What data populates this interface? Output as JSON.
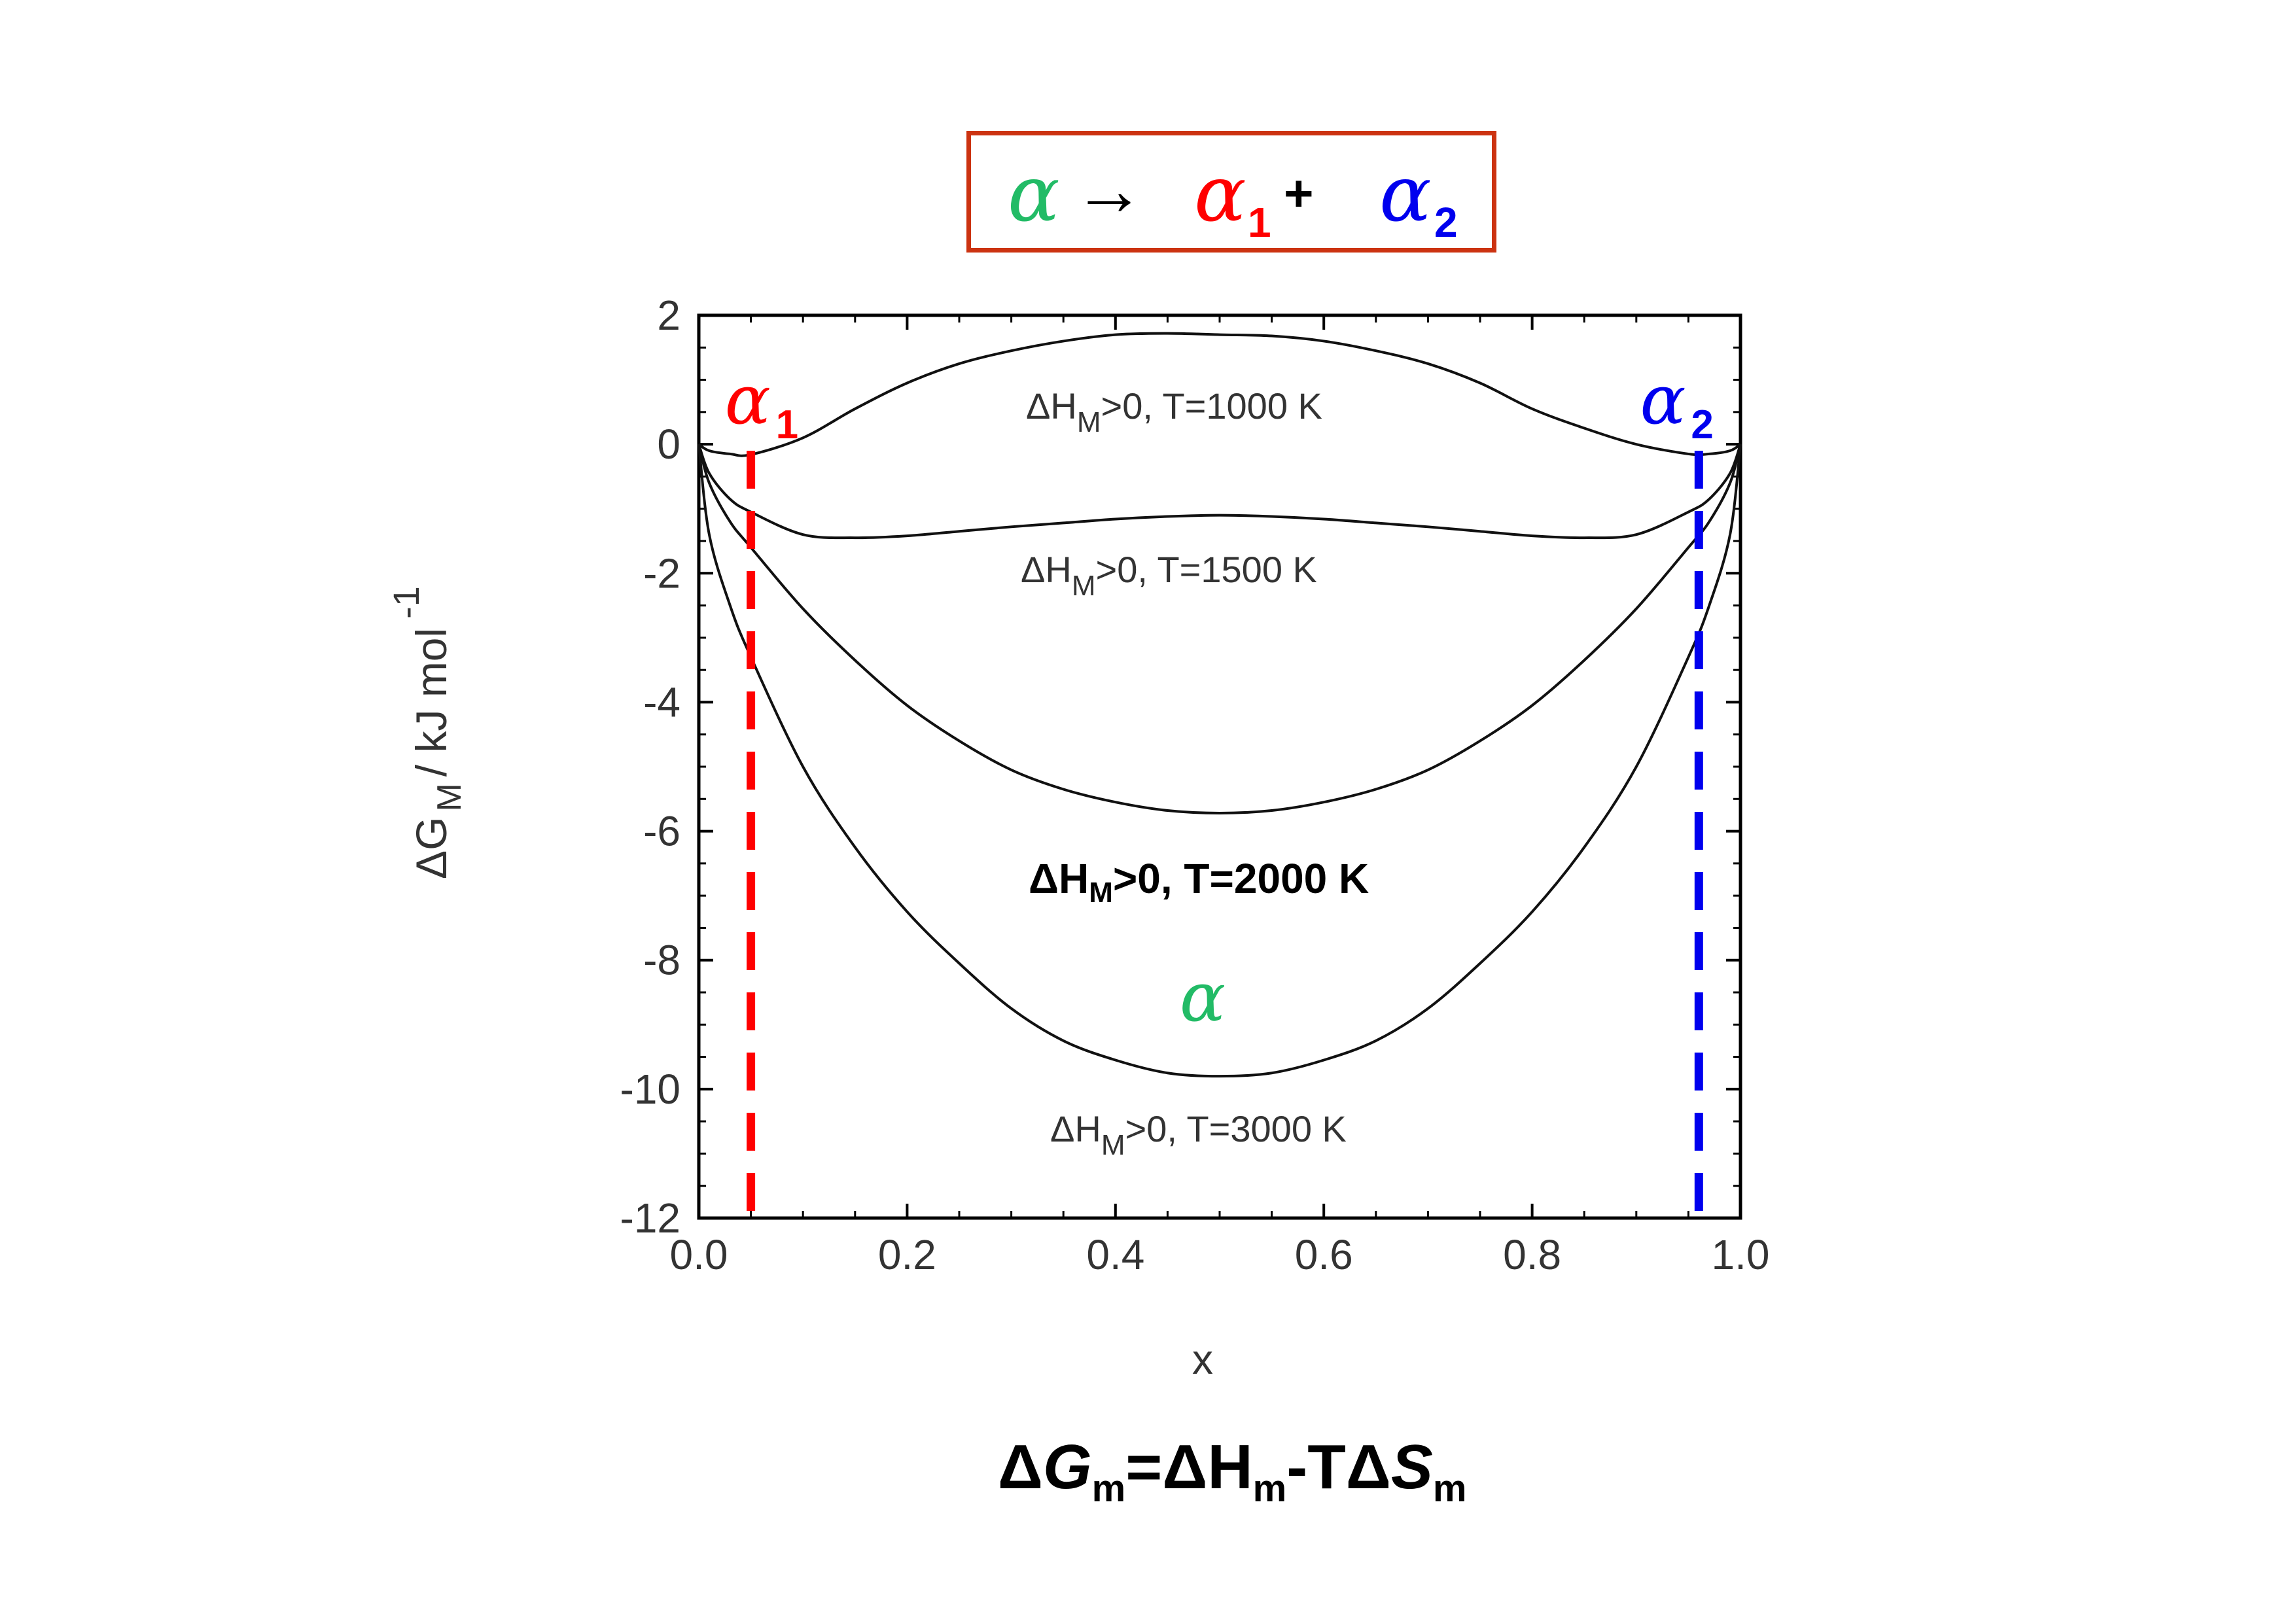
{
  "header": {
    "alpha": "α",
    "arrow": "→",
    "alpha1": "α",
    "sub1": "1",
    "plus": "+",
    "alpha2": "α",
    "sub2": "2",
    "colors": {
      "alpha": "#22bb66",
      "alpha1": "#ff0000",
      "alpha2": "#0000ee",
      "box": "#cc3311"
    }
  },
  "formula": {
    "d1": "Δ",
    "G": "G",
    "m1": "m",
    "eq": "=",
    "d2": "Δ",
    "H": "H",
    "m2": "m",
    "minus": "-T",
    "d3": "Δ",
    "S": "S",
    "m3": "m"
  },
  "chart_data": {
    "type": "line",
    "xlabel": "x",
    "ylabel": {
      "main": "ΔG",
      "sub": "M",
      "unit": "/ kJ mol",
      "sup": "-1"
    },
    "xlim": [
      0.0,
      1.0
    ],
    "ylim": [
      -12,
      2
    ],
    "xticks": [
      "0.0",
      "0.2",
      "0.4",
      "0.6",
      "0.8",
      "1.0"
    ],
    "yticks": [
      "2",
      "0",
      "-2",
      "-4",
      "-6",
      "-8",
      "-10",
      "-12"
    ],
    "x": [
      0.0,
      0.01,
      0.03,
      0.05,
      0.1,
      0.15,
      0.2,
      0.25,
      0.3,
      0.35,
      0.4,
      0.45,
      0.5,
      0.55,
      0.6,
      0.65,
      0.7,
      0.75,
      0.8,
      0.85,
      0.9,
      0.95,
      0.97,
      0.99,
      1.0
    ],
    "series": [
      {
        "label": {
          "pre": "ΔH",
          "sub": "M",
          "post": ">0, T=1000 K"
        },
        "values": [
          0,
          -0.1,
          -0.15,
          -0.16,
          0.1,
          0.55,
          0.95,
          1.25,
          1.45,
          1.6,
          1.7,
          1.72,
          1.7,
          1.68,
          1.6,
          1.45,
          1.25,
          0.95,
          0.55,
          0.25,
          0.0,
          -0.15,
          -0.15,
          -0.1,
          0
        ]
      },
      {
        "label": {
          "pre": "ΔH",
          "sub": "M",
          "post": ">0, T=1500 K"
        },
        "values": [
          0,
          -0.45,
          -0.85,
          -1.05,
          -1.4,
          -1.45,
          -1.42,
          -1.35,
          -1.28,
          -1.22,
          -1.16,
          -1.12,
          -1.1,
          -1.12,
          -1.16,
          -1.22,
          -1.28,
          -1.35,
          -1.42,
          -1.45,
          -1.4,
          -1.05,
          -0.85,
          -0.45,
          0
        ]
      },
      {
        "label": {
          "pre": "ΔH",
          "sub": "M",
          "post": ">0, T=2000 K",
          "bold": true
        },
        "values": [
          0,
          -0.6,
          -1.2,
          -1.6,
          -2.55,
          -3.35,
          -4.05,
          -4.6,
          -5.05,
          -5.35,
          -5.55,
          -5.68,
          -5.72,
          -5.68,
          -5.55,
          -5.35,
          -5.05,
          -4.6,
          -4.05,
          -3.35,
          -2.55,
          -1.6,
          -1.2,
          -0.6,
          0
        ]
      },
      {
        "label": {
          "pre": "ΔH",
          "sub": "M",
          "post": ">0, T=3000 K"
        },
        "values": [
          0,
          -1.4,
          -2.5,
          -3.3,
          -5.0,
          -6.25,
          -7.25,
          -8.05,
          -8.75,
          -9.25,
          -9.55,
          -9.75,
          -9.8,
          -9.75,
          -9.55,
          -9.25,
          -8.75,
          -8.05,
          -7.25,
          -6.25,
          -5.0,
          -3.3,
          -2.5,
          -1.4,
          0
        ]
      }
    ],
    "markers": [
      {
        "x": 0.05,
        "color": "#ff0000",
        "label": "α",
        "sub": "1"
      },
      {
        "x": 0.96,
        "color": "#0000ee",
        "label": "α",
        "sub": "2"
      }
    ],
    "annotation": {
      "text": "α",
      "color": "#22bb66"
    },
    "grid": false,
    "legend": "none"
  }
}
